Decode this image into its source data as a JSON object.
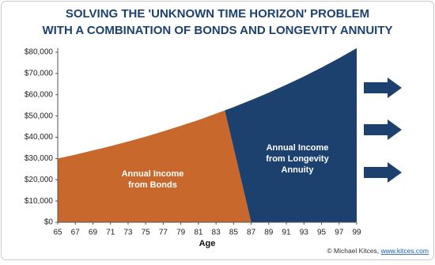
{
  "chart_data": {
    "type": "area",
    "title": [
      "SOLVING THE 'UNKNOWN TIME HORIZON' PROBLEM",
      "WITH A COMBINATION OF BONDS AND LONGEVITY ANNUITY"
    ],
    "x_label": "Age",
    "x": [
      65,
      67,
      69,
      71,
      73,
      75,
      77,
      79,
      81,
      83,
      85,
      87,
      89,
      91,
      93,
      95,
      97,
      99
    ],
    "values": [
      30000,
      31800,
      33800,
      35800,
      38000,
      40300,
      42800,
      45400,
      48100,
      51100,
      54200,
      57500,
      61000,
      64700,
      68600,
      72800,
      77200,
      81900
    ],
    "split": [
      84,
      87
    ],
    "regions": [
      {
        "lines": [
          "Annual Income",
          "from Bonds"
        ],
        "color": "#c8682c"
      },
      {
        "lines": [
          "Annual Income",
          "from Longevity",
          "Annuity"
        ],
        "color": "#1d416f"
      }
    ],
    "xlim": [
      65,
      99
    ],
    "xticks": [
      65,
      67,
      69,
      71,
      73,
      75,
      77,
      79,
      81,
      83,
      85,
      87,
      89,
      91,
      93,
      95,
      97,
      99
    ],
    "ylim": [
      0,
      82000
    ],
    "yticks": [
      {
        "value": 0,
        "label": "$0"
      },
      {
        "value": 10000,
        "label": "$10,000"
      },
      {
        "value": 20000,
        "label": "$20,000"
      },
      {
        "value": 30000,
        "label": "$30,000"
      },
      {
        "value": 40000,
        "label": "$40,000"
      },
      {
        "value": 50000,
        "label": "$50,000"
      },
      {
        "value": 60000,
        "label": "$60,000"
      },
      {
        "value": 70000,
        "label": "$70,000"
      },
      {
        "value": 80000,
        "label": "$80,000"
      }
    ],
    "credit": [
      "© Michael Kitces, ",
      "www.kitces.com"
    ]
  }
}
